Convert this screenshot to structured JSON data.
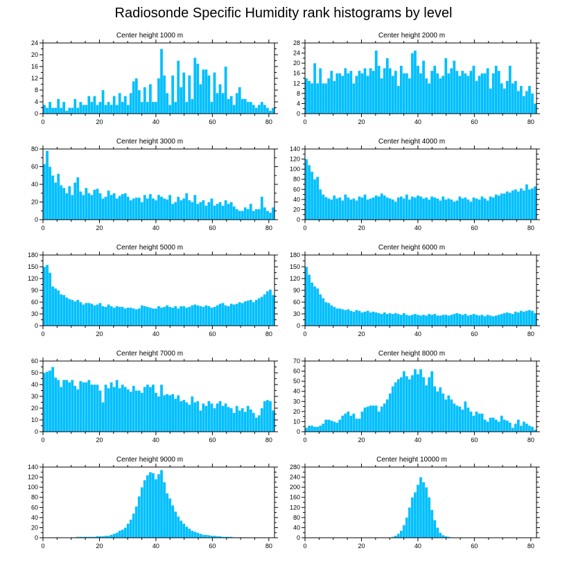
{
  "title": "Radiosonde Specific Humidity rank histograms by level",
  "colors": {
    "bar": "#00bfff",
    "axis": "#000000"
  },
  "chart_data": [
    {
      "type": "bar",
      "title": "Center height 1000 m",
      "xlim": [
        0,
        82
      ],
      "ylim": [
        0,
        24
      ],
      "xticks": [
        0,
        20,
        40,
        60,
        80
      ],
      "yticks": [
        0,
        4,
        8,
        12,
        16,
        20,
        24
      ],
      "values": [
        3,
        2,
        4,
        2,
        2,
        5,
        2,
        4,
        1,
        2,
        2,
        5,
        2,
        4,
        3,
        3,
        6,
        4,
        6,
        3,
        4,
        8,
        3,
        4,
        3,
        6,
        3,
        7,
        4,
        6,
        3,
        7,
        11,
        12,
        8,
        4,
        9,
        4,
        10,
        4,
        4,
        12,
        22,
        13,
        7,
        3,
        13,
        4,
        18,
        9,
        14,
        4,
        13,
        5,
        19,
        17,
        10,
        15,
        15,
        13,
        4,
        14,
        7,
        10,
        7,
        16,
        5,
        6,
        3,
        7,
        9,
        5,
        5,
        4,
        4,
        3,
        2,
        3,
        4,
        3,
        2,
        1,
        2
      ]
    },
    {
      "type": "bar",
      "title": "Center height 2000 m",
      "xlim": [
        0,
        82
      ],
      "ylim": [
        0,
        28
      ],
      "xticks": [
        0,
        20,
        40,
        60,
        80
      ],
      "yticks": [
        0,
        4,
        8,
        12,
        16,
        20,
        24,
        28
      ],
      "values": [
        14,
        13,
        12,
        20,
        12,
        18,
        12,
        12,
        14,
        17,
        13,
        16,
        16,
        15,
        18,
        16,
        17,
        12,
        15,
        17,
        16,
        18,
        15,
        18,
        17,
        25,
        19,
        14,
        18,
        22,
        18,
        15,
        17,
        11,
        19,
        16,
        16,
        14,
        24,
        25,
        19,
        16,
        21,
        14,
        12,
        17,
        19,
        16,
        14,
        15,
        22,
        16,
        18,
        21,
        17,
        15,
        17,
        16,
        15,
        17,
        19,
        13,
        15,
        16,
        16,
        18,
        10,
        16,
        19,
        17,
        12,
        10,
        13,
        19,
        12,
        13,
        9,
        11,
        7,
        9,
        11,
        8,
        4
      ]
    },
    {
      "type": "bar",
      "title": "Center height 3000 m",
      "xlim": [
        0,
        82
      ],
      "ylim": [
        0,
        80
      ],
      "xticks": [
        0,
        20,
        40,
        60,
        80
      ],
      "yticks": [
        0,
        20,
        40,
        60,
        80
      ],
      "values": [
        63,
        78,
        60,
        50,
        42,
        52,
        39,
        36,
        30,
        38,
        28,
        42,
        48,
        32,
        28,
        36,
        30,
        28,
        34,
        35,
        30,
        24,
        26,
        33,
        28,
        30,
        24,
        27,
        29,
        30,
        26,
        22,
        24,
        25,
        25,
        20,
        28,
        24,
        29,
        24,
        22,
        28,
        26,
        24,
        23,
        28,
        18,
        20,
        26,
        22,
        24,
        30,
        22,
        20,
        28,
        18,
        20,
        22,
        16,
        20,
        24,
        16,
        18,
        20,
        16,
        22,
        18,
        20,
        15,
        12,
        10,
        10,
        14,
        12,
        18,
        10,
        12,
        12,
        26,
        14,
        10,
        8,
        14
      ]
    },
    {
      "type": "bar",
      "title": "Center height 4000 m",
      "xlim": [
        0,
        82
      ],
      "ylim": [
        0,
        140
      ],
      "xticks": [
        0,
        20,
        40,
        60,
        80
      ],
      "yticks": [
        0,
        20,
        40,
        60,
        80,
        100,
        120,
        140
      ],
      "values": [
        120,
        108,
        95,
        80,
        85,
        60,
        50,
        45,
        42,
        40,
        48,
        42,
        44,
        38,
        50,
        44,
        40,
        42,
        38,
        46,
        44,
        50,
        40,
        42,
        44,
        48,
        46,
        52,
        48,
        44,
        42,
        40,
        36,
        44,
        46,
        42,
        50,
        40,
        46,
        44,
        48,
        46,
        42,
        44,
        40,
        46,
        44,
        42,
        38,
        46,
        40,
        42,
        40,
        36,
        38,
        46,
        42,
        44,
        40,
        36,
        44,
        42,
        40,
        46,
        42,
        38,
        46,
        44,
        50,
        48,
        52,
        52,
        56,
        54,
        58,
        60,
        56,
        62,
        58,
        70,
        60,
        62,
        66
      ]
    },
    {
      "type": "bar",
      "title": "Center height 5000 m",
      "xlim": [
        0,
        82
      ],
      "ylim": [
        0,
        180
      ],
      "xticks": [
        0,
        20,
        40,
        60,
        80
      ],
      "yticks": [
        0,
        30,
        60,
        90,
        120,
        150,
        180
      ],
      "values": [
        150,
        155,
        135,
        100,
        95,
        90,
        80,
        78,
        72,
        68,
        66,
        62,
        66,
        60,
        54,
        58,
        58,
        56,
        52,
        54,
        58,
        50,
        48,
        54,
        50,
        46,
        50,
        48,
        48,
        44,
        46,
        46,
        44,
        42,
        44,
        52,
        50,
        48,
        46,
        44,
        44,
        50,
        46,
        48,
        52,
        48,
        46,
        50,
        44,
        50,
        50,
        46,
        48,
        52,
        54,
        52,
        50,
        48,
        52,
        50,
        46,
        48,
        52,
        56,
        58,
        52,
        50,
        56,
        54,
        56,
        60,
        58,
        62,
        64,
        66,
        60,
        66,
        70,
        74,
        80,
        88,
        92,
        78
      ]
    },
    {
      "type": "bar",
      "title": "Center height 6000 m",
      "xlim": [
        0,
        82
      ],
      "ylim": [
        0,
        180
      ],
      "xticks": [
        0,
        20,
        40,
        60,
        80
      ],
      "yticks": [
        0,
        30,
        60,
        90,
        120,
        150,
        180
      ],
      "values": [
        150,
        130,
        110,
        100,
        95,
        80,
        70,
        60,
        58,
        52,
        48,
        44,
        44,
        42,
        40,
        42,
        38,
        36,
        40,
        38,
        34,
        36,
        38,
        34,
        36,
        34,
        32,
        30,
        34,
        30,
        32,
        30,
        32,
        30,
        28,
        32,
        28,
        26,
        28,
        30,
        28,
        26,
        28,
        26,
        30,
        28,
        30,
        26,
        26,
        28,
        28,
        26,
        28,
        30,
        32,
        30,
        28,
        30,
        26,
        28,
        30,
        28,
        26,
        28,
        24,
        28,
        26,
        24,
        26,
        28,
        30,
        32,
        34,
        32,
        30,
        36,
        34,
        38,
        36,
        38,
        40,
        38,
        32
      ]
    },
    {
      "type": "bar",
      "title": "Center height 7000 m",
      "xlim": [
        0,
        82
      ],
      "ylim": [
        0,
        60
      ],
      "xticks": [
        0,
        20,
        40,
        60,
        80
      ],
      "yticks": [
        0,
        10,
        20,
        30,
        40,
        50,
        60
      ],
      "values": [
        50,
        51,
        52,
        55,
        46,
        44,
        38,
        44,
        44,
        42,
        44,
        39,
        36,
        43,
        42,
        42,
        44,
        40,
        40,
        40,
        35,
        25,
        40,
        37,
        42,
        38,
        44,
        37,
        40,
        38,
        36,
        34,
        39,
        35,
        35,
        33,
        38,
        40,
        38,
        40,
        33,
        30,
        40,
        31,
        32,
        31,
        32,
        28,
        31,
        26,
        27,
        25,
        23,
        30,
        25,
        26,
        18,
        24,
        22,
        26,
        24,
        20,
        24,
        26,
        22,
        24,
        21,
        20,
        16,
        22,
        18,
        20,
        17,
        22,
        19,
        16,
        12,
        14,
        20,
        26,
        27,
        26,
        18
      ]
    },
    {
      "type": "bar",
      "title": "Center height 8000 m",
      "xlim": [
        0,
        82
      ],
      "ylim": [
        0,
        70
      ],
      "xticks": [
        0,
        20,
        40,
        60,
        80
      ],
      "yticks": [
        0,
        10,
        20,
        30,
        40,
        50,
        60,
        70
      ],
      "values": [
        4,
        6,
        6,
        5,
        5,
        6,
        8,
        12,
        12,
        11,
        10,
        9,
        12,
        16,
        18,
        20,
        16,
        18,
        13,
        13,
        20,
        24,
        25,
        26,
        26,
        26,
        20,
        25,
        28,
        32,
        38,
        45,
        49,
        52,
        54,
        60,
        55,
        52,
        56,
        62,
        57,
        62,
        54,
        46,
        54,
        60,
        45,
        40,
        44,
        38,
        32,
        36,
        32,
        28,
        26,
        25,
        22,
        30,
        24,
        20,
        16,
        20,
        18,
        18,
        12,
        10,
        14,
        14,
        12,
        10,
        16,
        12,
        11,
        9,
        4,
        8,
        12,
        6,
        10,
        8,
        6,
        5,
        2
      ]
    },
    {
      "type": "bar",
      "title": "Center height 9000 m",
      "xlim": [
        0,
        82
      ],
      "ylim": [
        0,
        140
      ],
      "xticks": [
        0,
        20,
        40,
        60,
        80
      ],
      "yticks": [
        0,
        20,
        40,
        60,
        80,
        100,
        120,
        140
      ],
      "values": [
        0,
        0,
        0,
        0,
        0,
        0,
        0,
        0,
        0,
        0,
        1,
        1,
        2,
        2,
        2,
        2,
        2,
        2,
        2,
        3,
        3,
        3,
        4,
        4,
        6,
        8,
        10,
        14,
        16,
        20,
        28,
        36,
        48,
        62,
        82,
        100,
        114,
        124,
        130,
        128,
        116,
        126,
        134,
        110,
        88,
        78,
        64,
        52,
        42,
        34,
        28,
        22,
        18,
        14,
        12,
        10,
        8,
        6,
        6,
        5,
        4,
        4,
        3,
        3,
        2,
        2,
        2,
        2,
        1,
        1,
        1,
        1,
        1,
        1,
        0,
        1,
        0,
        0,
        0,
        0,
        0,
        0,
        0
      ]
    },
    {
      "type": "bar",
      "title": "Center height 10000 m",
      "xlim": [
        0,
        82
      ],
      "ylim": [
        0,
        280
      ],
      "xticks": [
        0,
        20,
        40,
        60,
        80
      ],
      "yticks": [
        0,
        40,
        80,
        120,
        160,
        200,
        240,
        280
      ],
      "values": [
        0,
        0,
        0,
        0,
        0,
        0,
        0,
        0,
        0,
        0,
        0,
        0,
        0,
        0,
        0,
        0,
        0,
        0,
        0,
        0,
        0,
        0,
        0,
        0,
        0,
        0,
        0,
        0,
        1,
        1,
        2,
        4,
        8,
        16,
        28,
        50,
        80,
        120,
        160,
        180,
        210,
        240,
        220,
        200,
        160,
        110,
        70,
        40,
        20,
        10,
        6,
        4,
        2,
        1,
        1,
        0,
        0,
        0,
        0,
        0,
        0,
        0,
        0,
        0,
        0,
        0,
        0,
        0,
        0,
        0,
        0,
        0,
        0,
        0,
        0,
        0,
        0,
        0,
        0,
        0,
        0,
        0,
        0
      ]
    }
  ]
}
